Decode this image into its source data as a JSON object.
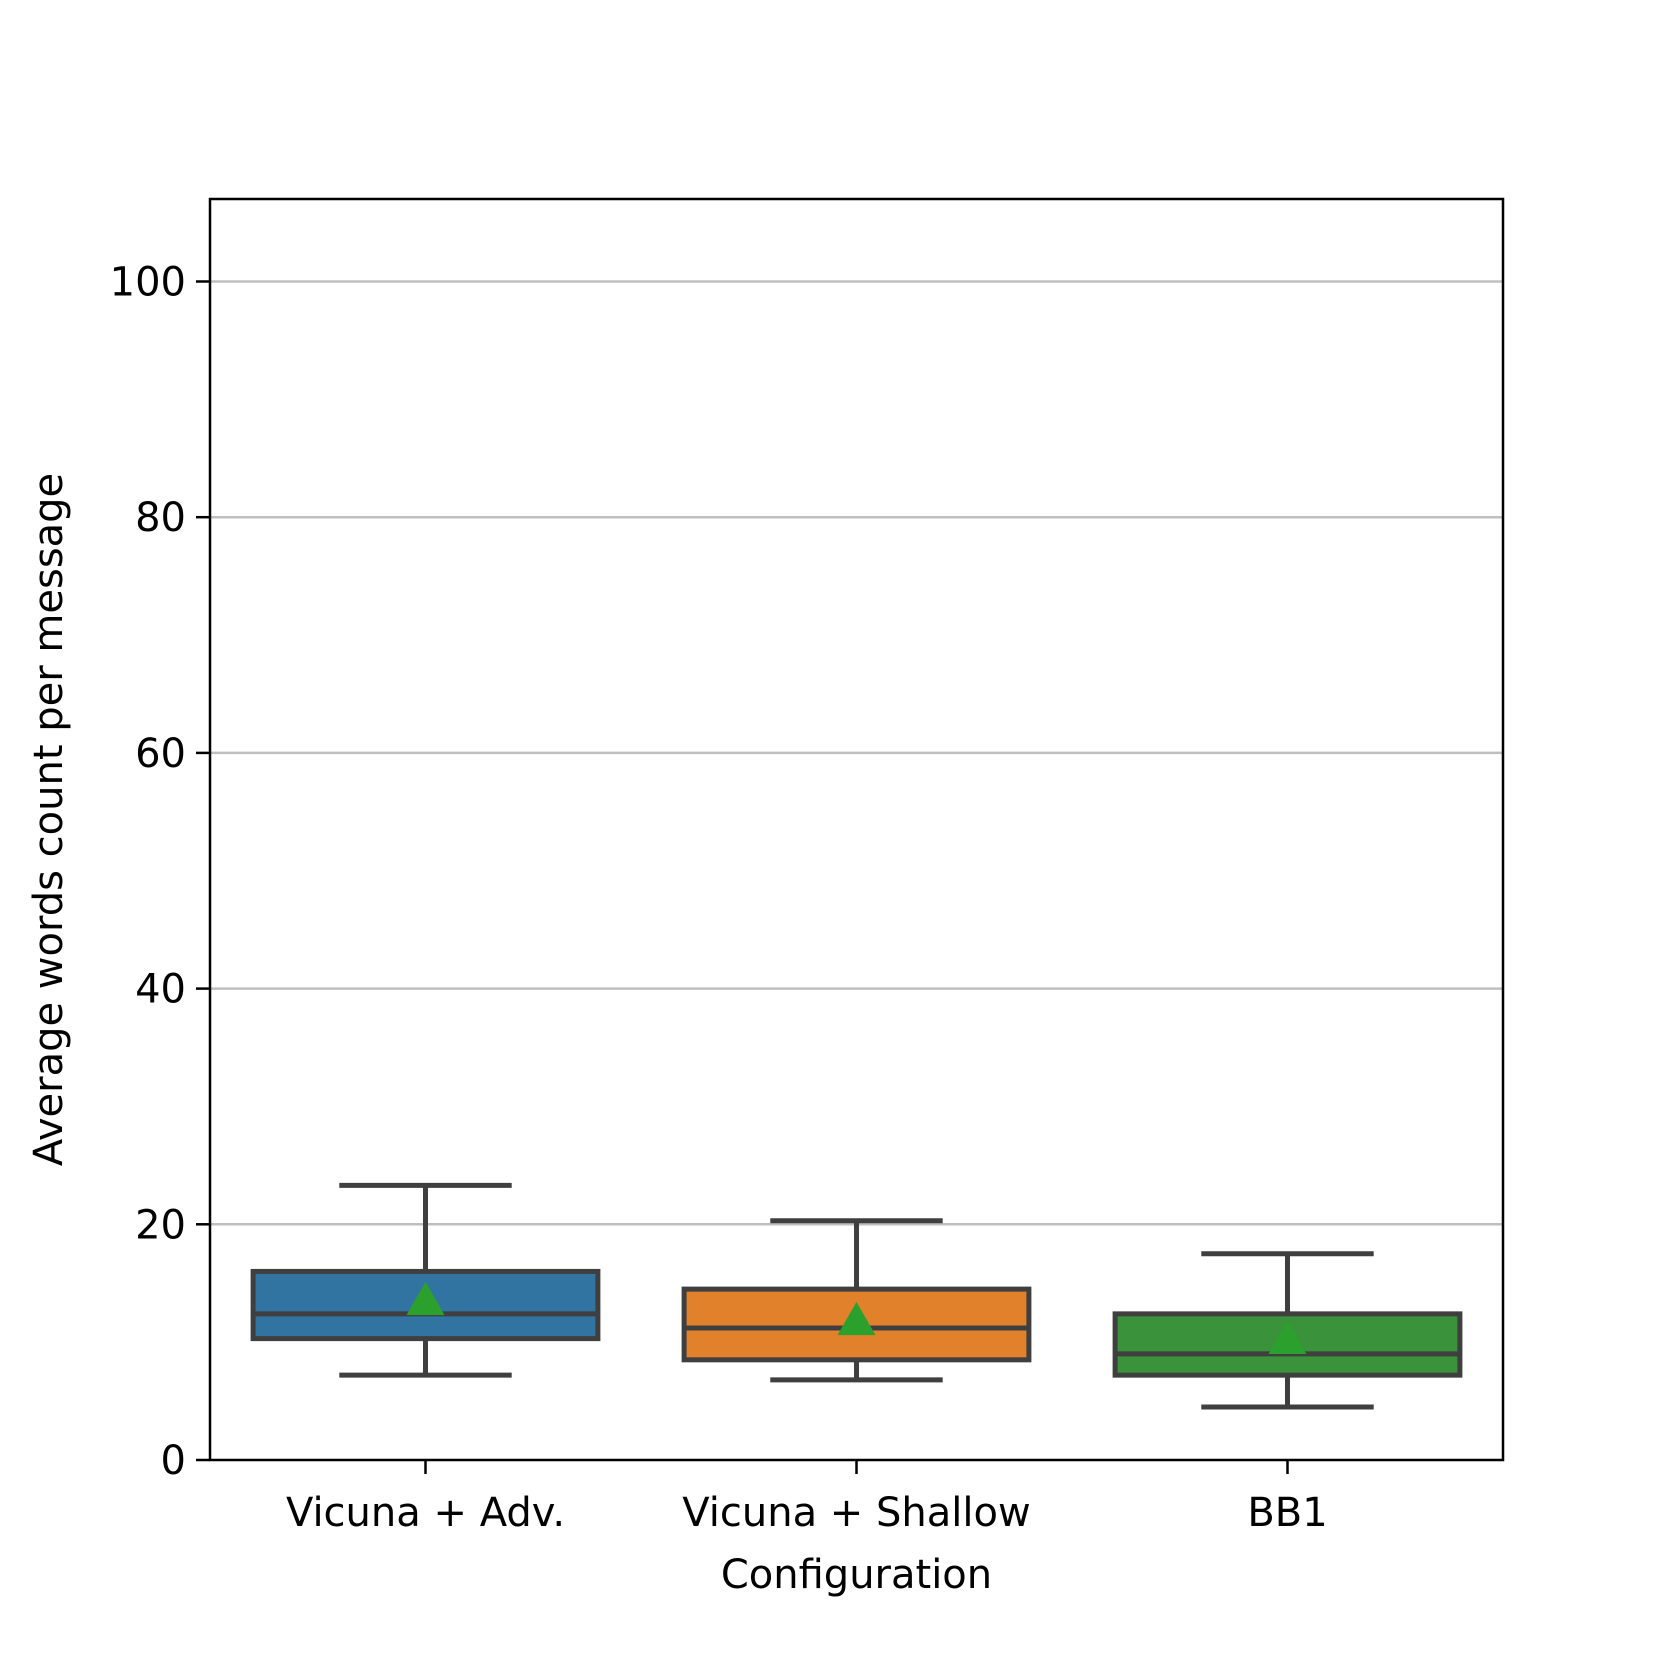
{
  "chart_data": {
    "type": "box",
    "title": "",
    "xlabel": "Configuration",
    "ylabel": "Average words count per message",
    "categories": [
      "Vicuna + Adv.",
      "Vicuna + Shallow",
      "BB1"
    ],
    "ylim": [
      0,
      107
    ],
    "yticks": [
      0,
      20,
      40,
      60,
      80,
      100
    ],
    "ytick_labels": [
      "0",
      "20",
      "40",
      "60",
      "80",
      "100"
    ],
    "grid": "y",
    "legend": "none",
    "boxes": [
      {
        "category": "Vicuna + Adv.",
        "whisker_low": 7.2,
        "q1": 10.3,
        "median": 12.4,
        "q3": 16.0,
        "whisker_high": 23.3,
        "mean": 13.5,
        "color": "#3274a1"
      },
      {
        "category": "Vicuna + Shallow",
        "whisker_low": 6.8,
        "q1": 8.5,
        "median": 11.2,
        "q3": 14.5,
        "whisker_high": 20.3,
        "mean": 11.8,
        "color": "#e1812c"
      },
      {
        "category": "BB1",
        "whisker_low": 4.5,
        "q1": 7.2,
        "median": 9.0,
        "q3": 12.4,
        "whisker_high": 17.5,
        "mean": 10.2,
        "color": "#3a923a"
      }
    ],
    "mean_marker_color": "#2ca02c",
    "box_edge_color": "#3f3f3f"
  }
}
